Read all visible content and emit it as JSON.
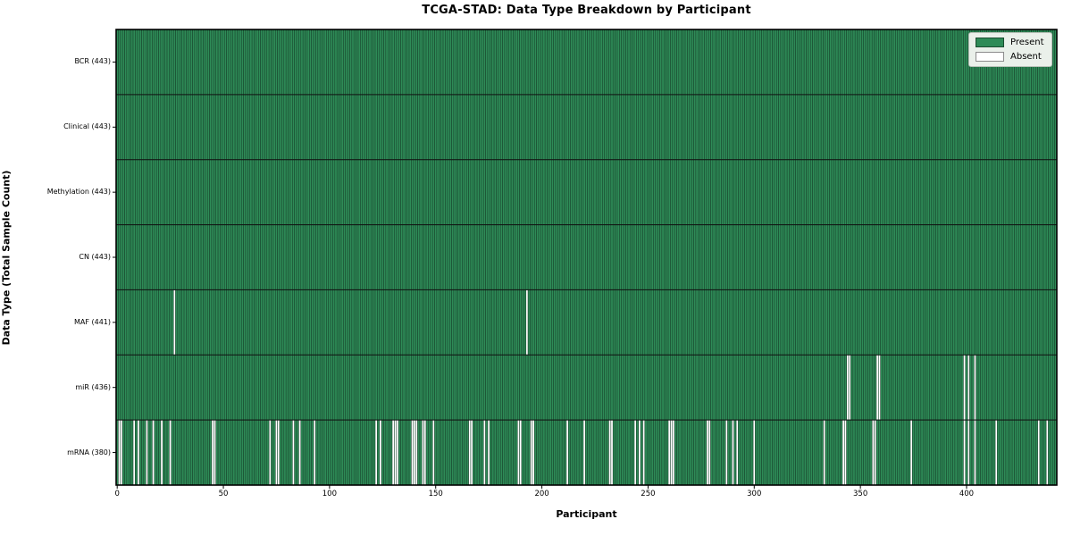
{
  "chart_data": {
    "type": "heatmap",
    "title": "TCGA-STAD: Data Type Breakdown by Participant",
    "xlabel": "Participant",
    "ylabel": "Data Type (Total Sample Count)",
    "n_participants": 443,
    "xlim": [
      -0.5,
      442.5
    ],
    "x_ticks": [
      0,
      50,
      100,
      150,
      200,
      250,
      300,
      350,
      400
    ],
    "grid": "row-separators-only",
    "cell_states": {
      "present": 1,
      "absent": 0
    },
    "colors": {
      "present": "#2e8b57",
      "absent": "#ffffff",
      "cell_edge": "#16402a",
      "row_separator": "#111111",
      "spine": "#000000",
      "legend_bg": "#eaf0ea"
    },
    "legend": {
      "position": "upper right",
      "entries": [
        {
          "label": "Present",
          "color": "#2e8b57"
        },
        {
          "label": "Absent",
          "color": "#ffffff"
        }
      ]
    },
    "rows": [
      {
        "label": "BCR (443)",
        "data_type": "BCR",
        "present_count": 443,
        "absent_participants": []
      },
      {
        "label": "Clinical (443)",
        "data_type": "Clinical",
        "present_count": 443,
        "absent_participants": []
      },
      {
        "label": "Methylation (443)",
        "data_type": "Methylation",
        "present_count": 443,
        "absent_participants": []
      },
      {
        "label": "CN (443)",
        "data_type": "CN",
        "present_count": 443,
        "absent_participants": []
      },
      {
        "label": "MAF (441)",
        "data_type": "MAF",
        "present_count": 441,
        "absent_participants": [
          27,
          193
        ]
      },
      {
        "label": "miR (436)",
        "data_type": "miR",
        "present_count": 436,
        "absent_participants": [
          344,
          345,
          358,
          359,
          399,
          401,
          404
        ]
      },
      {
        "label": "mRNA (380)",
        "data_type": "mRNA",
        "present_count": 380,
        "absent_participants": [
          1,
          2,
          8,
          10,
          14,
          17,
          21,
          25,
          45,
          46,
          72,
          75,
          76,
          83,
          86,
          93,
          122,
          124,
          130,
          131,
          132,
          139,
          140,
          141,
          144,
          145,
          149,
          166,
          167,
          173,
          175,
          189,
          190,
          195,
          196,
          212,
          220,
          232,
          233,
          244,
          246,
          248,
          260,
          261,
          262,
          278,
          279,
          287,
          290,
          292,
          300,
          333,
          342,
          343,
          356,
          357,
          374,
          399,
          401,
          404,
          414,
          434,
          438
        ]
      }
    ]
  }
}
